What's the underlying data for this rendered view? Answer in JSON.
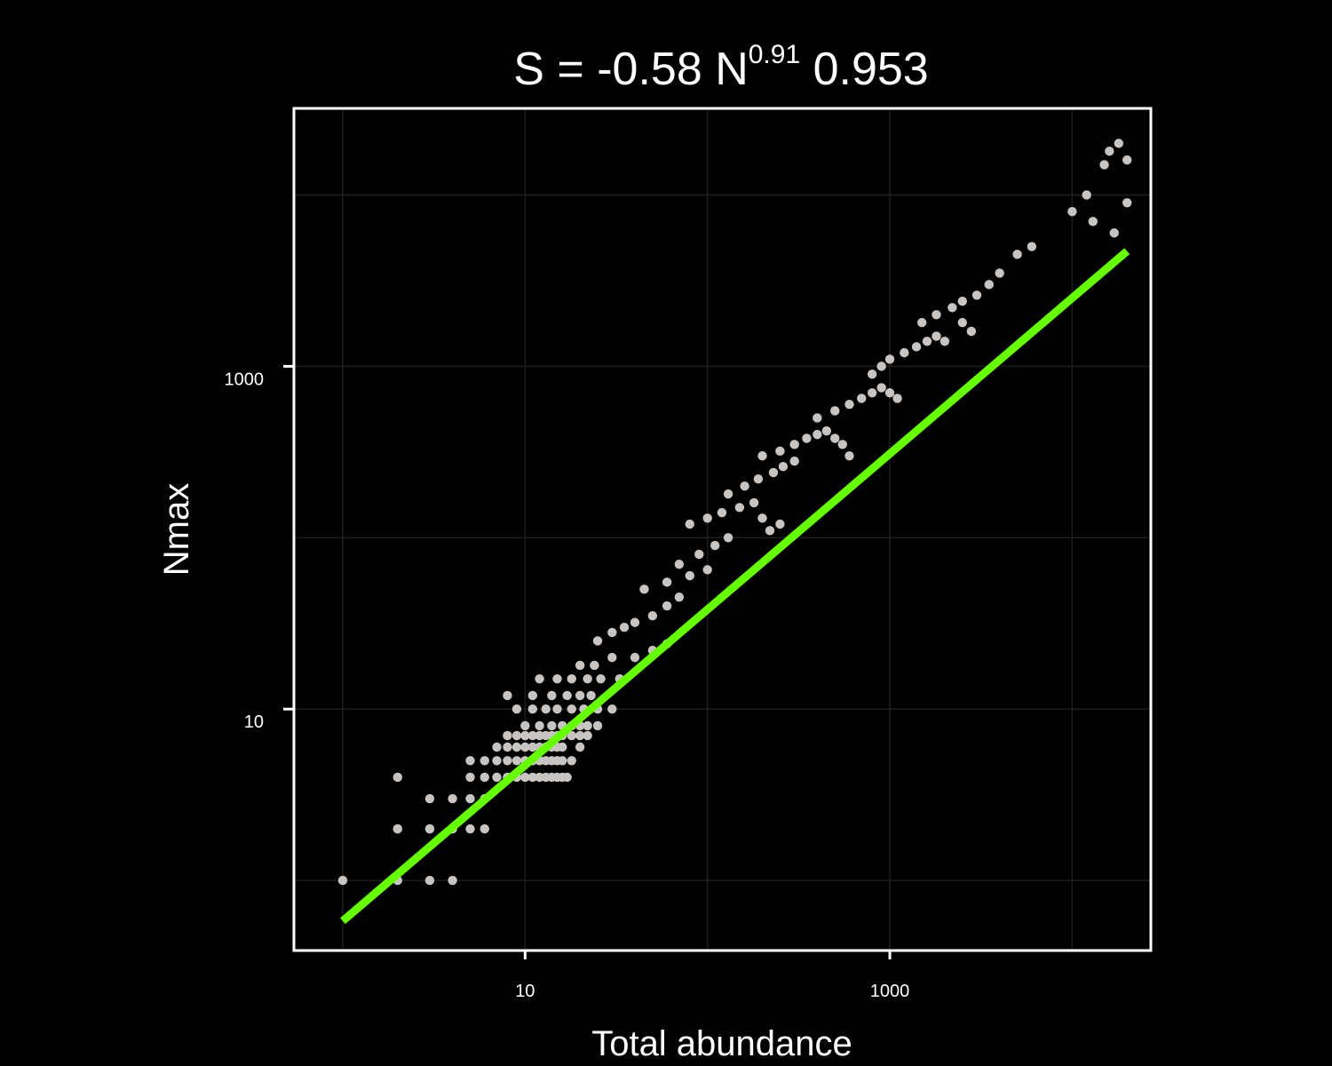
{
  "chart_data": {
    "type": "scatter",
    "title": {
      "prefix": "S =  -0.58 N",
      "exponent": "0.91",
      "suffix": " 0.953"
    },
    "xlabel": "Total abundance",
    "ylabel": "Nmax",
    "x_scale": "log10",
    "y_scale": "log10",
    "xlim": [
      0.54,
      27000
    ],
    "ylim": [
      0.39,
      32000
    ],
    "x_ticks": [
      {
        "value": 10,
        "label": "10"
      },
      {
        "value": 1000,
        "label": "1000"
      }
    ],
    "y_ticks": [
      {
        "value": 10,
        "label": "10"
      },
      {
        "value": 1000,
        "label": "1000"
      }
    ],
    "grid": true,
    "colors": {
      "background": "#000000",
      "panel": "#000000",
      "grid": "#1e1e1e",
      "points": "#c8c4c2",
      "fit_line": "#66ff00",
      "text": "#ffffff"
    },
    "fit_line": {
      "x": [
        1.0,
        20000
      ],
      "y": [
        0.58,
        4700
      ]
    },
    "series": [
      {
        "points": [
          [
            1,
            1
          ],
          [
            2,
            1
          ],
          [
            3,
            1
          ],
          [
            4,
            1
          ],
          [
            2,
            2
          ],
          [
            3,
            2
          ],
          [
            4,
            2
          ],
          [
            3,
            3
          ],
          [
            2,
            4
          ],
          [
            2,
            2
          ],
          [
            3,
            2
          ],
          [
            4,
            2
          ],
          [
            5,
            2
          ],
          [
            6,
            2
          ],
          [
            4,
            3
          ],
          [
            5,
            3
          ],
          [
            6,
            3
          ],
          [
            5,
            4
          ],
          [
            6,
            4
          ],
          [
            7,
            4
          ],
          [
            8,
            4
          ],
          [
            9,
            4
          ],
          [
            10,
            4
          ],
          [
            11,
            4
          ],
          [
            12,
            4
          ],
          [
            13,
            4
          ],
          [
            14,
            4
          ],
          [
            15,
            4
          ],
          [
            16,
            4
          ],
          [
            17,
            4
          ],
          [
            5,
            5
          ],
          [
            6,
            5
          ],
          [
            7,
            5
          ],
          [
            8,
            5
          ],
          [
            9,
            5
          ],
          [
            10,
            5
          ],
          [
            11,
            5
          ],
          [
            12,
            5
          ],
          [
            13,
            5
          ],
          [
            14,
            5
          ],
          [
            15,
            5
          ],
          [
            16,
            5
          ],
          [
            7,
            6
          ],
          [
            8,
            6
          ],
          [
            9,
            6
          ],
          [
            10,
            6
          ],
          [
            11,
            6
          ],
          [
            12,
            6
          ],
          [
            13,
            6
          ],
          [
            14,
            6
          ],
          [
            15,
            6
          ],
          [
            16,
            6
          ],
          [
            18,
            5
          ],
          [
            20,
            6
          ],
          [
            8,
            7
          ],
          [
            9,
            7
          ],
          [
            10,
            7
          ],
          [
            11,
            7
          ],
          [
            12,
            7
          ],
          [
            13,
            7
          ],
          [
            14,
            7
          ],
          [
            15,
            7
          ],
          [
            16,
            7
          ],
          [
            18,
            7
          ],
          [
            20,
            7
          ],
          [
            22,
            7
          ],
          [
            10,
            8
          ],
          [
            12,
            8
          ],
          [
            14,
            8
          ],
          [
            16,
            8
          ],
          [
            18,
            8
          ],
          [
            20,
            8
          ],
          [
            22,
            8
          ],
          [
            25,
            8
          ],
          [
            9,
            10
          ],
          [
            11,
            10
          ],
          [
            13,
            10
          ],
          [
            15,
            10
          ],
          [
            18,
            10
          ],
          [
            21,
            10
          ],
          [
            25,
            10
          ],
          [
            30,
            10
          ],
          [
            8,
            12
          ],
          [
            11,
            12
          ],
          [
            14,
            12
          ],
          [
            17,
            12
          ],
          [
            20,
            12
          ],
          [
            23,
            12
          ],
          [
            12,
            15
          ],
          [
            15,
            15
          ],
          [
            18,
            15
          ],
          [
            22,
            15
          ],
          [
            26,
            15
          ],
          [
            33,
            15
          ],
          [
            20,
            18
          ],
          [
            24,
            18
          ],
          [
            30,
            20
          ],
          [
            40,
            20
          ],
          [
            50,
            22
          ],
          [
            60,
            24
          ],
          [
            25,
            25
          ],
          [
            30,
            28
          ],
          [
            35,
            30
          ],
          [
            40,
            32
          ],
          [
            50,
            35
          ],
          [
            60,
            40
          ],
          [
            70,
            45
          ],
          [
            45,
            50
          ],
          [
            60,
            55
          ],
          [
            80,
            60
          ],
          [
            100,
            65
          ],
          [
            70,
            70
          ],
          [
            90,
            80
          ],
          [
            110,
            90
          ],
          [
            130,
            100
          ],
          [
            80,
            120
          ],
          [
            100,
            130
          ],
          [
            120,
            140
          ],
          [
            150,
            150
          ],
          [
            180,
            160
          ],
          [
            200,
            130
          ],
          [
            220,
            110
          ],
          [
            250,
            120
          ],
          [
            130,
            180
          ],
          [
            160,
            200
          ],
          [
            190,
            220
          ],
          [
            230,
            240
          ],
          [
            260,
            260
          ],
          [
            300,
            280
          ],
          [
            200,
            300
          ],
          [
            250,
            320
          ],
          [
            300,
            350
          ],
          [
            350,
            380
          ],
          [
            400,
            400
          ],
          [
            450,
            420
          ],
          [
            500,
            380
          ],
          [
            550,
            350
          ],
          [
            600,
            300
          ],
          [
            400,
            500
          ],
          [
            500,
            550
          ],
          [
            600,
            600
          ],
          [
            700,
            650
          ],
          [
            800,
            700
          ],
          [
            900,
            750
          ],
          [
            1000,
            700
          ],
          [
            1100,
            650
          ],
          [
            800,
            900
          ],
          [
            900,
            1000
          ],
          [
            1000,
            1100
          ],
          [
            1200,
            1200
          ],
          [
            1400,
            1300
          ],
          [
            1600,
            1400
          ],
          [
            1800,
            1500
          ],
          [
            2000,
            1400
          ],
          [
            1500,
            1800
          ],
          [
            1800,
            2000
          ],
          [
            2200,
            2200
          ],
          [
            2500,
            2400
          ],
          [
            3000,
            2600
          ],
          [
            3500,
            3000
          ],
          [
            2500,
            1800
          ],
          [
            2800,
            1600
          ],
          [
            4000,
            3500
          ],
          [
            5000,
            4500
          ],
          [
            6000,
            5000
          ],
          [
            10000,
            8000
          ],
          [
            12000,
            10000
          ],
          [
            13000,
            7000
          ],
          [
            15000,
            15000
          ],
          [
            18000,
            20000
          ],
          [
            16000,
            18000
          ],
          [
            20000,
            16000
          ],
          [
            20000,
            9000
          ],
          [
            17000,
            6000
          ]
        ]
      }
    ]
  }
}
